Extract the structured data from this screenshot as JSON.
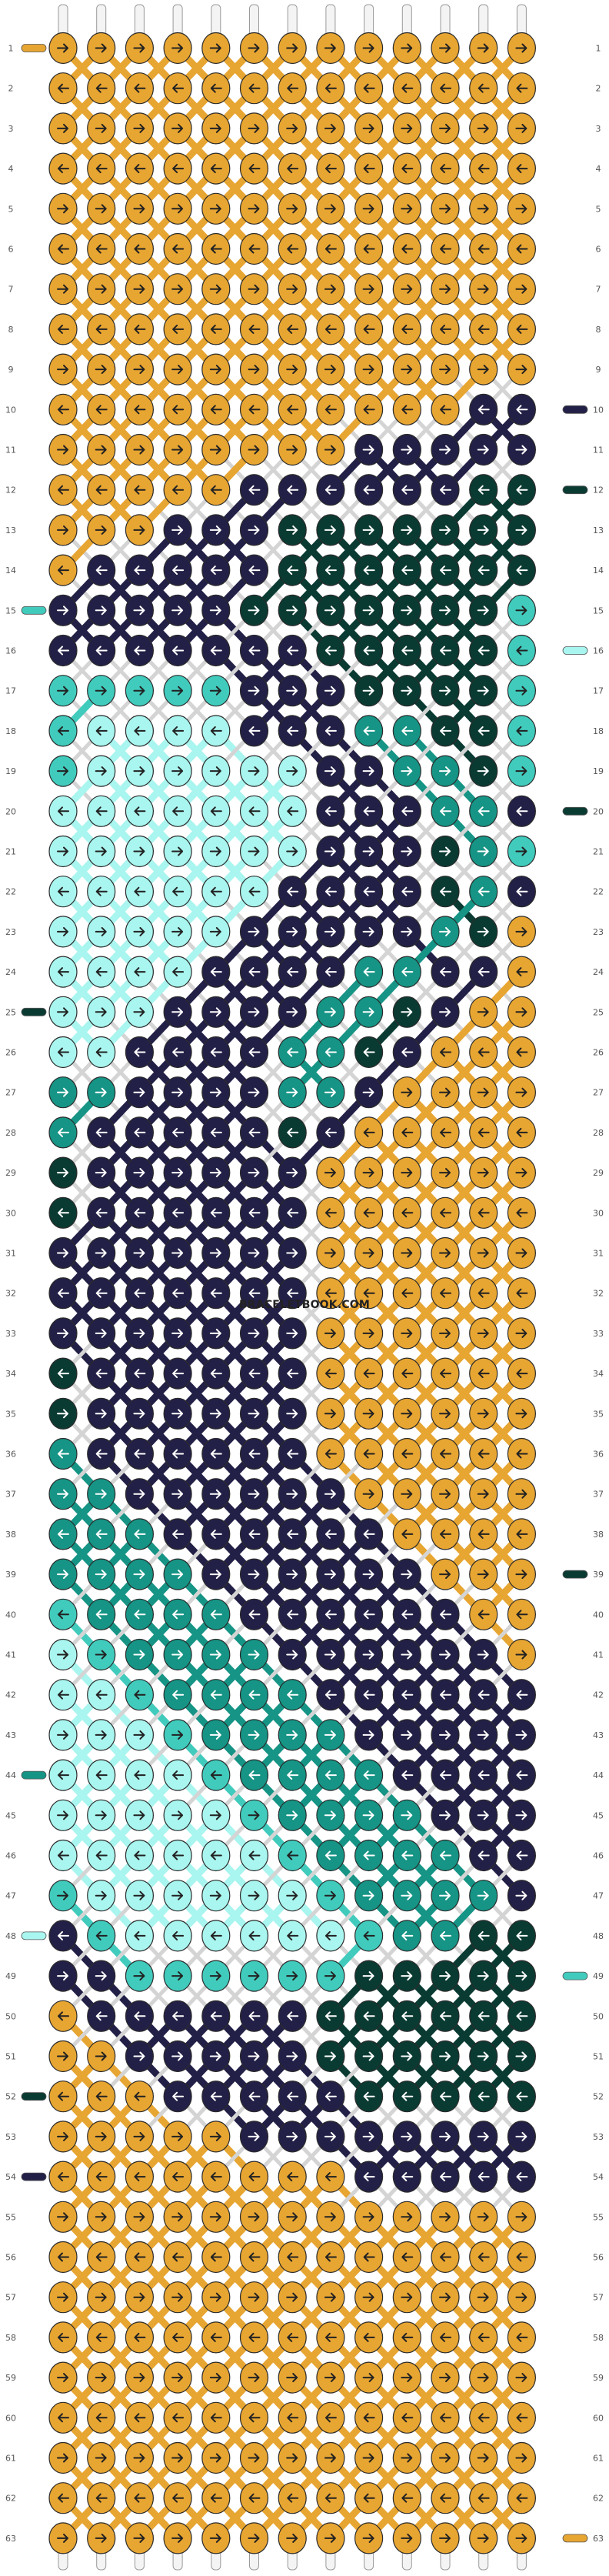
{
  "watermark": "BRACELETBOOK.COM",
  "rows_count": 63,
  "columns_count": 13,
  "string_colors": {
    "A": "#e7a532",
    "B": "#232047",
    "C": "#0a3b33",
    "D": "#169485",
    "E": "#41cbbd",
    "F": "#a9f5ef"
  },
  "knot_rows": [
    "AAAAAAAAAAAAA",
    "AAAAAAAAAAAAA",
    "AAAAAAAAAAAAA",
    "AAAAAAAAAAAAA",
    "AAAAAAAAAAAAA",
    "AAAAAAAAAAAAA",
    "AAAAAAAAAAAAA",
    "AAAAAAAAAAAAA",
    "AAAAAAAAAAAAA",
    "AAAAAAAAAAABB",
    "AAAAAAAABBBBB",
    "AAAAABBBBBBCC",
    "AAABBBCCCCCCC",
    "ABBBBBCCCCCCC",
    "BBBBBCCCCCCCE",
    "BBBBBBBCCCCCE",
    "EEEEEBBBCCCCE",
    "EFFFFBBBDDCCE",
    "EFFFFFFBBDDCE",
    "FFFFFFFBBBDDB",
    "FFFFFFFBBBCDE",
    "FFFFFFBBBBCDB",
    "FFFFFBBBBBDCA",
    "FFFFBBBBDDBBA",
    "FFFBBBBDDCBAA",
    "FFBBBBDDCBAAA",
    "DDBBBBDDBAAAA",
    "DBBBBBCBAAAAA",
    "CBBBBBBAAAAAA",
    "CBBBBBBAAAAAA",
    "BBBBBBBAAAAAA",
    "BBBBBBBAAAAAA",
    "BBBBBBBAAAAAA",
    "CBBBBBBAAAAAA",
    "CBBBBBBAAAAAA",
    "DBBBBBBAAAAAA",
    "DDBBBBBBAAAAA",
    "DDDBBBBBBAAAA",
    "DDDDBBBBBBAAA",
    "EDDDDBBBBBBAA",
    "FEDDDDBBBBBBA",
    "FFEDDDDBBBBBB",
    "FFFEDDDDBBBBB",
    "FFFFEDDDDBBBB",
    "FFFFFEDDDDBBB",
    "FFFFFFEDDDDBB",
    "EFFFFFFEDDDDB",
    "BEFFFFFFEDDCC",
    "BBEEEEEECCCCC",
    "ABBBBBBCCCCCC",
    "AABBBBBCCCCCC",
    "AAABBBBBCCCCC",
    "AAAAABBBBBBBB",
    "AAAAAAAABBBBB",
    "AAAAAAAAAAAAA",
    "AAAAAAAAAAAAA",
    "AAAAAAAAAAAAA",
    "AAAAAAAAAAAAA",
    "AAAAAAAAAAAAA",
    "AAAAAAAAAAAAA",
    "AAAAAAAAAAAAA",
    "AAAAAAAAAAAAA",
    "AAAAAAAAAAAAA"
  ],
  "arrow_rows": [
    "RRRRRRRRRRRRR",
    "LLLLLLLLLLLLL",
    "RRRRRRRRRRRRR",
    "LLLLLLLLLLLLL",
    "RRRRRRRRRRRRR",
    "LLLLLLLLLLLLL",
    "RRRRRRRRRRRRR",
    "LLLLLLLLLLLLL",
    "RRRRRRRRRRRRR",
    "LLLLLLLLLLLLL",
    "RRRRRRRRRRRRR",
    "LLLLLLLLLLLLL",
    "RRRRRRRRRRRRR",
    "LLLLLLLLLLLLL",
    "RRRRRRRRRRRRR",
    "LLLLLLLLLLLLL",
    "RRRRRRRRRRRRR",
    "LLLLLLLLLLLLL",
    "RRRRRRRRRRRRR",
    "LLLLLLLLLLLLL",
    "RRRRRRRRRRRRR",
    "LLLLLLLLLLLLL",
    "RRRRRRRRRRRRR",
    "LLLLLLLLLLLLL",
    "RRRRRRRRRRRRR",
    "LLLLLLLLLLLLL",
    "RRRRRRRRRRRRR",
    "LLLLLLLLLLLLL",
    "RRRRRRRRRRRRR",
    "LLLLLLLLLLLLL",
    "RRRRRRRRRRRRR",
    "LLLLLLLLLLLLL",
    "RRRRRRRRRRRRR",
    "LLLLLLLLLLLLL",
    "RRRRRRRRRRRRR",
    "LLLLLLLLLLLLL",
    "RRRRRRRRRRRRR",
    "LLLLLLLLLLLLL",
    "RRRRRRRRRRRRR",
    "LLLLLLLLLLLLL",
    "RRRRRRRRRRRRR",
    "LLLLLLLLLLLLL",
    "RRRRRRRRRRRRR",
    "LLLLLLLLLLLLL",
    "RRRRRRRRRRRRR",
    "LLLLLLLLLLLLL",
    "RRRRRRRRRRRRR",
    "LLLLLLLLLLLLL",
    "RRRRRRRRRRRRR",
    "LLLLLLLLLLLLL",
    "RRRRRRRRRRRRR",
    "LLLLLLLLLLLLL",
    "RRRRRRRRRRRRR",
    "LLLLLLLLLLLLL",
    "RRRRRRRRRRRRR",
    "LLLLLLLLLLLLL",
    "RRRRRRRRRRRRR",
    "LLLLLLLLLLLLL",
    "RRRRRRRRRRRRR",
    "LLLLLLLLLLLLL",
    "RRRRRRRRRRRRR",
    "LLLLLLLLLLLLL",
    "RRRRRRRRRRRRR"
  ],
  "side_tabs": [
    {
      "row": 1,
      "side": "left",
      "color": "A"
    },
    {
      "row": 10,
      "side": "right",
      "color": "B"
    },
    {
      "row": 12,
      "side": "right",
      "color": "C"
    },
    {
      "row": 15,
      "side": "left",
      "color": "E"
    },
    {
      "row": 16,
      "side": "right",
      "color": "F"
    },
    {
      "row": 20,
      "side": "right",
      "color": "C"
    },
    {
      "row": 25,
      "side": "left",
      "color": "C"
    },
    {
      "row": 39,
      "side": "right",
      "color": "C"
    },
    {
      "row": 44,
      "side": "left",
      "color": "D"
    },
    {
      "row": 48,
      "side": "left",
      "color": "F"
    },
    {
      "row": 49,
      "side": "right",
      "color": "E"
    },
    {
      "row": 52,
      "side": "left",
      "color": "C"
    },
    {
      "row": 54,
      "side": "left",
      "color": "B"
    },
    {
      "row": 63,
      "side": "right",
      "color": "A"
    }
  ]
}
